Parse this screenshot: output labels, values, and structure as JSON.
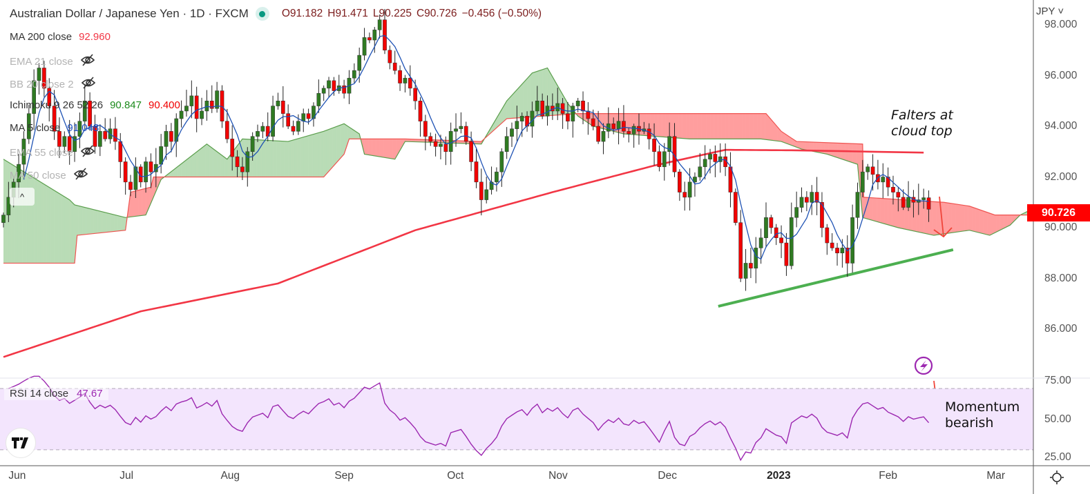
{
  "header": {
    "title": "Australian Dollar / Japanese Yen · 1D · FXCM",
    "ohlc": {
      "open": "O91.182",
      "high": "H91.471",
      "low": "L90.225",
      "close": "C90.726",
      "change": "−0.456 (−0.50%)"
    }
  },
  "legend": [
    {
      "name": "MA 200 close",
      "values": [
        "92.960"
      ],
      "colors": [
        "#f23645"
      ],
      "hidden": false
    },
    {
      "name": "EMA 21 close",
      "values": [],
      "hidden": true
    },
    {
      "name": "BB 20 close 2",
      "values": [],
      "hidden": true
    },
    {
      "name": "Ichimoku 9 26 52 26",
      "values": [
        "90.847",
        "90.400"
      ],
      "colors": [
        "#1b8a1b",
        "#f00000"
      ],
      "hidden": false
    },
    {
      "name": "MA 5 close",
      "values": [
        "91.048"
      ],
      "colors": [
        "#1e4fbf"
      ],
      "hidden": false
    },
    {
      "name": "EMA 55 close",
      "values": [],
      "hidden": true
    },
    {
      "name": "MA 50 close",
      "values": [],
      "hidden": true
    }
  ],
  "collapse_icon": "^",
  "rsi_legend": {
    "name": "RSI 14 close",
    "value": "47.67"
  },
  "currency": "JPY ˅",
  "current_price": "90.726",
  "logo_text": "TV",
  "annotations": {
    "cloud": [
      "Falters at",
      "cloud top"
    ],
    "momentum": [
      "Momentum",
      "bearish"
    ]
  },
  "colors": {
    "up": "#2f7a22",
    "down": "#f20000",
    "ma200": "#f23645",
    "ma5": "#1e52b4",
    "rsi": "#9c27b0",
    "cloud_up": "#b9dcb6",
    "cloud_down": "#ff9e9e",
    "trendline": "#4caf50",
    "arrow": "#f0453a"
  },
  "chart_data": {
    "type": "candlestick",
    "title": "Australian Dollar / Japanese Yen · 1D · FXCM",
    "ylim": [
      84.0,
      98.6
    ],
    "y_ticks": [
      "98.000",
      "96.000",
      "94.000",
      "92.000",
      "90.000",
      "88.000",
      "86.000"
    ],
    "y_tick_values": [
      98,
      96,
      94,
      92,
      90,
      88,
      86
    ],
    "x_ticks": [
      {
        "label": "Jun",
        "bar": 2.7
      },
      {
        "label": "Jul",
        "bar": 24.2
      },
      {
        "label": "Aug",
        "bar": 44.6
      },
      {
        "label": "Sep",
        "bar": 67
      },
      {
        "label": "Oct",
        "bar": 88.9
      },
      {
        "label": "Nov",
        "bar": 109.1
      },
      {
        "label": "Dec",
        "bar": 130.6
      },
      {
        "label": "2023",
        "bar": 152.5,
        "bold": true
      },
      {
        "label": "Feb",
        "bar": 174
      },
      {
        "label": "Mar",
        "bar": 195.2
      }
    ],
    "closes": [
      90.5,
      91.2,
      91.8,
      92.5,
      93.5,
      94.5,
      95.8,
      96.3,
      95.5,
      94.8,
      93.8,
      93.2,
      93.6,
      93.0,
      93.6,
      94.2,
      95.0,
      94.0,
      93.2,
      93.8,
      93.5,
      93.9,
      93.4,
      92.6,
      91.8,
      91.5,
      92.4,
      91.8,
      92.6,
      92.2,
      92.5,
      93.2,
      93.8,
      93.4,
      94.3,
      94.6,
      94.8,
      95.2,
      94.3,
      94.6,
      95.0,
      94.7,
      95.4,
      94.2,
      93.5,
      92.8,
      92.4,
      92.2,
      93.0,
      93.6,
      93.8,
      94.0,
      93.6,
      94.8,
      95.0,
      94.5,
      94.0,
      93.8,
      94.2,
      94.5,
      94.3,
      94.8,
      95.3,
      95.5,
      95.8,
      95.4,
      95.6,
      95.3,
      95.9,
      96.2,
      96.8,
      97.5,
      97.4,
      97.8,
      98.2,
      97.0,
      96.5,
      96.2,
      95.7,
      95.9,
      95.5,
      95.0,
      94.2,
      93.6,
      93.4,
      93.2,
      93.3,
      93.0,
      93.8,
      93.9,
      94.0,
      93.4,
      92.6,
      91.8,
      91.1,
      91.5,
      91.8,
      92.2,
      93.0,
      93.6,
      93.9,
      94.2,
      94.4,
      94.0,
      94.6,
      95.0,
      94.4,
      94.8,
      94.6,
      94.9,
      94.5,
      94.2,
      94.8,
      95.0,
      94.6,
      94.3,
      94.0,
      93.4,
      93.8,
      94.1,
      93.9,
      94.2,
      93.8,
      93.7,
      94.0,
      93.8,
      93.9,
      93.5,
      93.0,
      92.4,
      93.0,
      93.6,
      92.2,
      91.4,
      91.2,
      91.8,
      92.0,
      92.4,
      92.7,
      92.9,
      92.6,
      92.8,
      92.4,
      91.4,
      90.2,
      88.0,
      88.6,
      88.4,
      89.2,
      89.6,
      90.4,
      90.0,
      89.6,
      89.4,
      88.5,
      90.4,
      90.8,
      91.2,
      91.0,
      91.4,
      91.0,
      90.0,
      89.4,
      89.2,
      89.0,
      89.2,
      88.6,
      90.4,
      91.4,
      92.2,
      92.4,
      92.1,
      91.8,
      92.0,
      91.6,
      91.4,
      91.2,
      90.8,
      91.2,
      91.0,
      91.1,
      91.182,
      90.726
    ],
    "last_bar": {
      "open": 91.182,
      "high": 91.471,
      "low": 90.225,
      "close": 90.726
    },
    "ma200": [
      [
        0,
        84.9
      ],
      [
        27,
        86.7
      ],
      [
        54,
        87.8
      ],
      [
        81,
        89.9
      ],
      [
        108,
        91.4
      ],
      [
        128,
        92.45
      ],
      [
        142,
        93.07
      ],
      [
        156,
        93.05
      ],
      [
        181,
        92.96
      ]
    ],
    "ichimoku_span_a": [
      [
        0,
        92.7
      ],
      [
        13,
        91.1
      ],
      [
        14,
        90.9
      ],
      [
        24,
        90.4
      ],
      [
        28,
        90.5
      ],
      [
        31,
        91.9
      ],
      [
        40,
        93.3
      ],
      [
        44,
        92.7
      ],
      [
        47,
        93.5
      ],
      [
        56,
        93.4
      ],
      [
        63,
        93.8
      ],
      [
        67,
        94.1
      ],
      [
        70,
        93.7
      ],
      [
        71,
        92.9
      ],
      [
        77,
        92.7
      ],
      [
        79,
        93.4
      ],
      [
        94,
        93.3
      ],
      [
        99,
        95.0
      ],
      [
        104,
        96.1
      ],
      [
        107,
        96.3
      ],
      [
        111,
        94.9
      ],
      [
        113,
        94.4
      ],
      [
        116,
        94.0
      ],
      [
        122,
        93.7
      ],
      [
        135,
        93.5
      ],
      [
        149,
        93.5
      ],
      [
        153,
        93.4
      ],
      [
        157,
        93.1
      ],
      [
        162,
        92.9
      ],
      [
        168,
        92.5
      ],
      [
        169,
        90.4
      ],
      [
        176,
        90.0
      ],
      [
        183,
        89.7
      ],
      [
        190,
        89.9
      ],
      [
        194,
        89.7
      ],
      [
        198,
        90.1
      ],
      [
        200,
        90.5
      ],
      [
        203,
        90.8
      ]
    ],
    "ichimoku_span_b": [
      [
        0,
        88.6
      ],
      [
        14,
        88.6
      ],
      [
        14.5,
        89.7
      ],
      [
        24,
        89.9
      ],
      [
        25,
        91.4
      ],
      [
        29,
        91.6
      ],
      [
        29.5,
        92.0
      ],
      [
        63,
        92.0
      ],
      [
        67,
        92.9
      ],
      [
        68,
        93.5
      ],
      [
        79,
        93.5
      ],
      [
        94,
        93.4
      ],
      [
        99,
        94.3
      ],
      [
        113,
        94.5
      ],
      [
        150,
        94.5
      ],
      [
        153,
        93.8
      ],
      [
        156,
        93.4
      ],
      [
        169,
        93.3
      ],
      [
        169.2,
        91.2
      ],
      [
        185,
        91.0
      ],
      [
        190,
        90.85
      ],
      [
        195,
        90.5
      ],
      [
        203,
        90.5
      ]
    ],
    "trendline": [
      [
        140.6,
        86.9
      ],
      [
        186.8,
        89.13
      ]
    ],
    "rsi": {
      "period": 14,
      "ylim": [
        20,
        80
      ],
      "levels": [
        70,
        30
      ],
      "y_ticks": [
        "75.00",
        "50.00",
        "25.00"
      ],
      "y_tick_values": [
        75,
        50,
        25
      ],
      "last": 47.67
    }
  }
}
